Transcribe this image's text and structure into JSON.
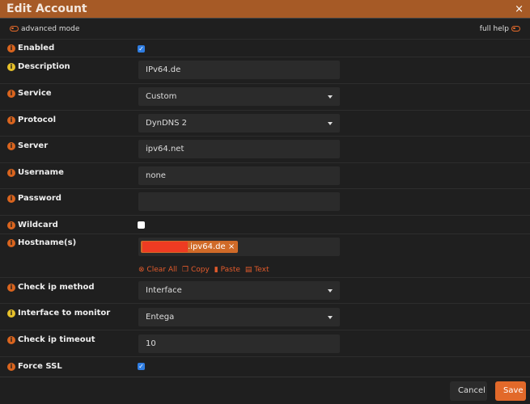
{
  "dialog": {
    "title": "Edit Account",
    "close": "×"
  },
  "toolbar": {
    "advanced_mode": "advanced mode",
    "full_help": "full help"
  },
  "fields": {
    "enabled": {
      "label": "Enabled",
      "checked": true
    },
    "description": {
      "label": "Description",
      "value": "IPv64.de"
    },
    "service": {
      "label": "Service",
      "value": "Custom"
    },
    "protocol": {
      "label": "Protocol",
      "value": "DynDNS 2"
    },
    "server": {
      "label": "Server",
      "value": "ipv64.net"
    },
    "username": {
      "label": "Username",
      "value": "none"
    },
    "password": {
      "label": "Password",
      "value": ""
    },
    "wildcard": {
      "label": "Wildcard",
      "checked": false
    },
    "hostnames": {
      "label": "Hostname(s)",
      "tag": ".ipv64.de",
      "tag_remove": "×",
      "actions": {
        "clear_all": "Clear All",
        "copy": "Copy",
        "paste": "Paste",
        "text": "Text"
      }
    },
    "check_ip_method": {
      "label": "Check ip method",
      "value": "Interface"
    },
    "interface": {
      "label": "Interface to monitor",
      "value": "Entega"
    },
    "timeout": {
      "label": "Check ip timeout",
      "value": "10"
    },
    "force_ssl": {
      "label": "Force SSL",
      "checked": true
    }
  },
  "footer": {
    "cancel": "Cancel",
    "save": "Save"
  },
  "colors": {
    "header": "#a65a26",
    "accent": "#e2692a",
    "info_help": "#e6c02a"
  }
}
